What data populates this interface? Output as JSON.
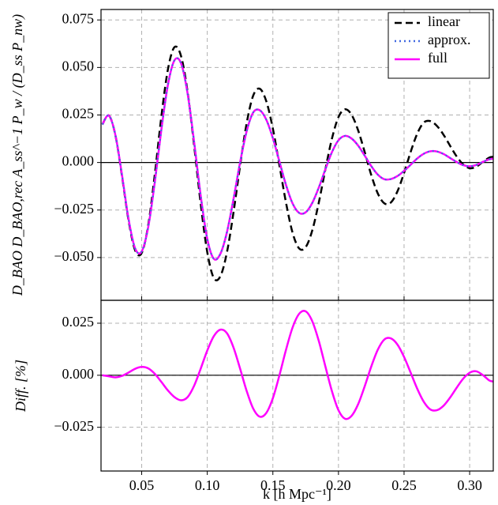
{
  "chart_data": [
    {
      "type": "line",
      "ylabel": "D_BAO D_BAO,rec A_ss^−1 P_w / (D_ss P_nw)",
      "x": [
        0.02,
        0.025,
        0.03,
        0.035,
        0.04,
        0.045,
        0.05,
        0.055,
        0.06,
        0.065,
        0.07,
        0.075,
        0.08,
        0.085,
        0.09,
        0.095,
        0.1,
        0.105,
        0.11,
        0.115,
        0.12,
        0.125,
        0.13,
        0.135,
        0.14,
        0.145,
        0.15,
        0.155,
        0.16,
        0.165,
        0.17,
        0.175,
        0.18,
        0.185,
        0.19,
        0.195,
        0.2,
        0.205,
        0.21,
        0.215,
        0.22,
        0.225,
        0.23,
        0.235,
        0.24,
        0.245,
        0.25,
        0.255,
        0.26,
        0.265,
        0.27,
        0.275,
        0.28,
        0.285,
        0.29,
        0.295,
        0.3,
        0.305,
        0.31,
        0.315,
        0.318
      ],
      "series": [
        {
          "name": "linear",
          "color": "#000000",
          "linestyle": "dashed",
          "values": [
            0.02,
            0.0247,
            0.0142,
            -0.0072,
            -0.0305,
            -0.0462,
            -0.0476,
            -0.0329,
            -0.0063,
            0.0242,
            0.049,
            0.0607,
            0.056,
            0.0371,
            0.0088,
            -0.0218,
            -0.0472,
            -0.0608,
            -0.0598,
            -0.0472,
            -0.0262,
            -0.0017,
            0.0206,
            0.0352,
            0.0388,
            0.0322,
            0.0178,
            -0.0015,
            -0.0211,
            -0.0369,
            -0.0452,
            -0.0445,
            -0.0358,
            -0.0211,
            -0.0037,
            0.0125,
            0.0239,
            0.028,
            0.0251,
            0.0169,
            0.0055,
            -0.0066,
            -0.0163,
            -0.0215,
            -0.021,
            -0.0151,
            -0.0055,
            0.0055,
            0.0151,
            0.021,
            0.0218,
            0.0193,
            0.0147,
            0.0089,
            0.0033,
            -0.001,
            -0.003,
            -0.0022,
            0.0003,
            0.0026,
            0.003
          ]
        },
        {
          "name": "approx.",
          "color": "#4169e1",
          "linestyle": "dotted",
          "values": [
            0.02,
            0.0247,
            0.0143,
            -0.0067,
            -0.0298,
            -0.0452,
            -0.0468,
            -0.0339,
            -0.0103,
            0.0173,
            0.0409,
            0.0538,
            0.0522,
            0.0363,
            0.0106,
            -0.0176,
            -0.0402,
            -0.0507,
            -0.048,
            -0.0366,
            -0.0192,
            0.0,
            0.0164,
            0.0263,
            0.0275,
            0.0225,
            0.0128,
            0.0005,
            -0.0118,
            -0.0215,
            -0.0265,
            -0.0262,
            -0.0213,
            -0.0132,
            -0.0036,
            0.0054,
            0.0117,
            0.014,
            0.0126,
            0.0089,
            0.0036,
            -0.0019,
            -0.0064,
            -0.0088,
            -0.0087,
            -0.0071,
            -0.0044,
            -0.0012,
            0.0021,
            0.0046,
            0.0059,
            0.0058,
            0.0045,
            0.0024,
            0.0003,
            -0.0014,
            -0.002,
            -0.0013,
            0.0003,
            0.0017,
            0.002
          ]
        },
        {
          "name": "full",
          "color": "#ff00ff",
          "linestyle": "solid",
          "values": [
            0.02,
            0.0247,
            0.0143,
            -0.0067,
            -0.0298,
            -0.0452,
            -0.0468,
            -0.0339,
            -0.0103,
            0.0173,
            0.0409,
            0.0538,
            0.0522,
            0.0363,
            0.0106,
            -0.0176,
            -0.0402,
            -0.0507,
            -0.048,
            -0.0366,
            -0.0192,
            0.0,
            0.0164,
            0.0263,
            0.0275,
            0.0225,
            0.0128,
            0.0005,
            -0.0118,
            -0.0215,
            -0.0265,
            -0.0262,
            -0.0213,
            -0.0132,
            -0.0036,
            0.0054,
            0.0117,
            0.014,
            0.0126,
            0.0089,
            0.0036,
            -0.0019,
            -0.0064,
            -0.0088,
            -0.0087,
            -0.0071,
            -0.0044,
            -0.0012,
            0.0021,
            0.0046,
            0.0059,
            0.0058,
            0.0045,
            0.0024,
            0.0003,
            -0.0014,
            -0.002,
            -0.0013,
            0.0003,
            0.0017,
            0.002
          ]
        }
      ],
      "xlim": [
        0.019,
        0.318
      ],
      "ylim": [
        -0.0725,
        0.0805
      ],
      "xticks": [
        0.05,
        0.1,
        0.15,
        0.2,
        0.25,
        0.3
      ],
      "yticks": [
        0.075,
        {
          "value": 0.05,
          "label": "0.050"
        },
        0.025,
        {
          "value": 0,
          "label": "0.000"
        },
        {
          "value": -0.025,
          "label": "−0.025"
        },
        {
          "value": -0.05,
          "label": "−0.050"
        }
      ],
      "grid": true,
      "legend": "upper right"
    },
    {
      "type": "line",
      "ylabel": "Diff. [%]",
      "xlabel": "k [h Mpc⁻¹]",
      "x": [
        0.02,
        0.025,
        0.03,
        0.035,
        0.04,
        0.045,
        0.05,
        0.055,
        0.06,
        0.065,
        0.07,
        0.075,
        0.08,
        0.085,
        0.09,
        0.095,
        0.1,
        0.105,
        0.11,
        0.115,
        0.12,
        0.125,
        0.13,
        0.135,
        0.14,
        0.145,
        0.15,
        0.155,
        0.16,
        0.165,
        0.17,
        0.175,
        0.18,
        0.185,
        0.19,
        0.195,
        0.2,
        0.205,
        0.21,
        0.215,
        0.22,
        0.225,
        0.23,
        0.235,
        0.24,
        0.245,
        0.25,
        0.255,
        0.26,
        0.265,
        0.27,
        0.275,
        0.28,
        0.285,
        0.29,
        0.295,
        0.3,
        0.305,
        0.31,
        0.315,
        0.318
      ],
      "series": [
        {
          "color": "#ff00ff",
          "linestyle": "solid",
          "values": [
            0.0,
            -0.0005,
            -0.001,
            -0.0003,
            0.0013,
            0.0031,
            0.004,
            0.0033,
            0.0007,
            -0.0032,
            -0.0073,
            -0.0105,
            -0.012,
            -0.0105,
            -0.005,
            0.0032,
            0.0119,
            0.0188,
            0.0219,
            0.0202,
            0.0133,
            0.0032,
            -0.0075,
            -0.016,
            -0.0199,
            -0.0181,
            -0.011,
            0.0,
            0.0122,
            0.0229,
            0.0295,
            0.0307,
            0.026,
            0.0165,
            0.0043,
            -0.0076,
            -0.0168,
            -0.0209,
            -0.0195,
            -0.0139,
            -0.0053,
            0.0042,
            0.0123,
            0.0172,
            0.0177,
            0.0147,
            0.0088,
            0.0013,
            -0.0064,
            -0.0127,
            -0.0164,
            -0.0168,
            -0.0147,
            -0.0108,
            -0.0061,
            -0.0017,
            0.0012,
            0.0019,
            0.0001,
            -0.0025,
            -0.003
          ]
        }
      ],
      "xlim": [
        0.019,
        0.318
      ],
      "ylim": [
        -0.046,
        0.036
      ],
      "xticks": [
        0.05,
        {
          "value": 0.1,
          "label": "0.10"
        },
        0.15,
        {
          "value": 0.2,
          "label": "0.20"
        },
        0.25,
        {
          "value": 0.3,
          "label": "0.30"
        }
      ],
      "yticks": [
        0.025,
        {
          "value": 0,
          "label": "0.000"
        },
        {
          "value": -0.025,
          "label": "−0.025"
        }
      ],
      "grid": true
    }
  ]
}
